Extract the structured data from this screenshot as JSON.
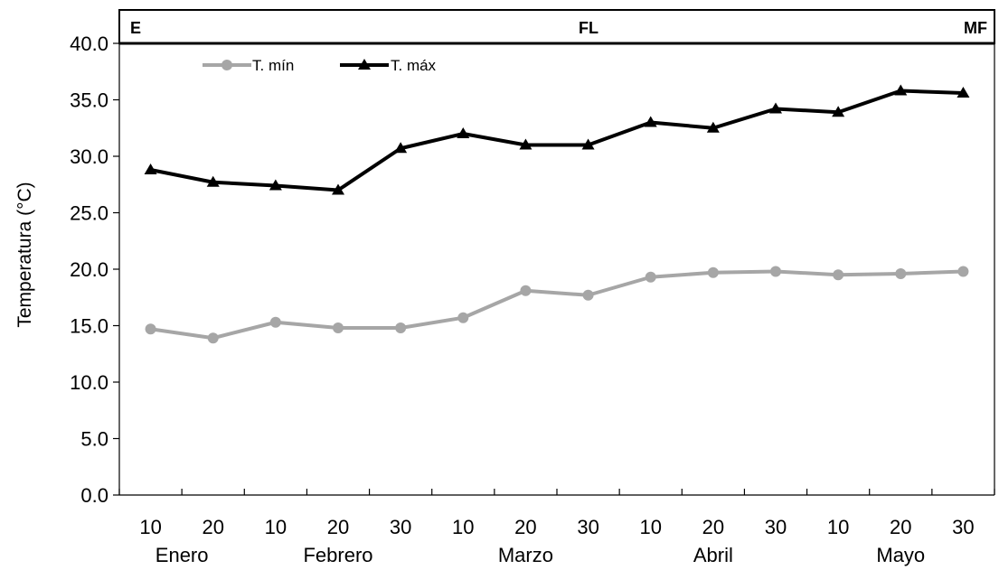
{
  "chart_data": {
    "type": "line",
    "title": "",
    "xlabel": "",
    "ylabel": "Temperatura (°C)",
    "ylim": [
      0,
      40
    ],
    "yticks": [
      "0.0",
      "5.0",
      "10.0",
      "15.0",
      "20.0",
      "25.0",
      "30.0",
      "35.0",
      "40.0"
    ],
    "categories": [
      "10",
      "20",
      "10",
      "20",
      "30",
      "10",
      "20",
      "30",
      "10",
      "20",
      "30",
      "10",
      "20",
      "30"
    ],
    "months": [
      {
        "label": "Enero",
        "count": 2
      },
      {
        "label": "Febrero",
        "count": 3
      },
      {
        "label": "Marzo",
        "count": 3
      },
      {
        "label": "Abril",
        "count": 3
      },
      {
        "label": "Mayo",
        "count": 3
      }
    ],
    "stages": [
      "E",
      "FL",
      "MF"
    ],
    "legend_position": "top-left",
    "grid": false,
    "series": [
      {
        "name": "T. mín",
        "color": "#a6a6a6",
        "marker": "circle",
        "values": [
          14.7,
          13.9,
          15.3,
          14.8,
          14.8,
          15.7,
          18.1,
          17.7,
          19.3,
          19.7,
          19.8,
          19.5,
          19.6,
          19.8
        ]
      },
      {
        "name": "T. máx",
        "color": "#000000",
        "marker": "triangle",
        "values": [
          28.8,
          27.7,
          27.4,
          27.0,
          30.7,
          32.0,
          31.0,
          31.0,
          33.0,
          32.5,
          34.2,
          33.9,
          35.8,
          35.6
        ]
      }
    ]
  }
}
